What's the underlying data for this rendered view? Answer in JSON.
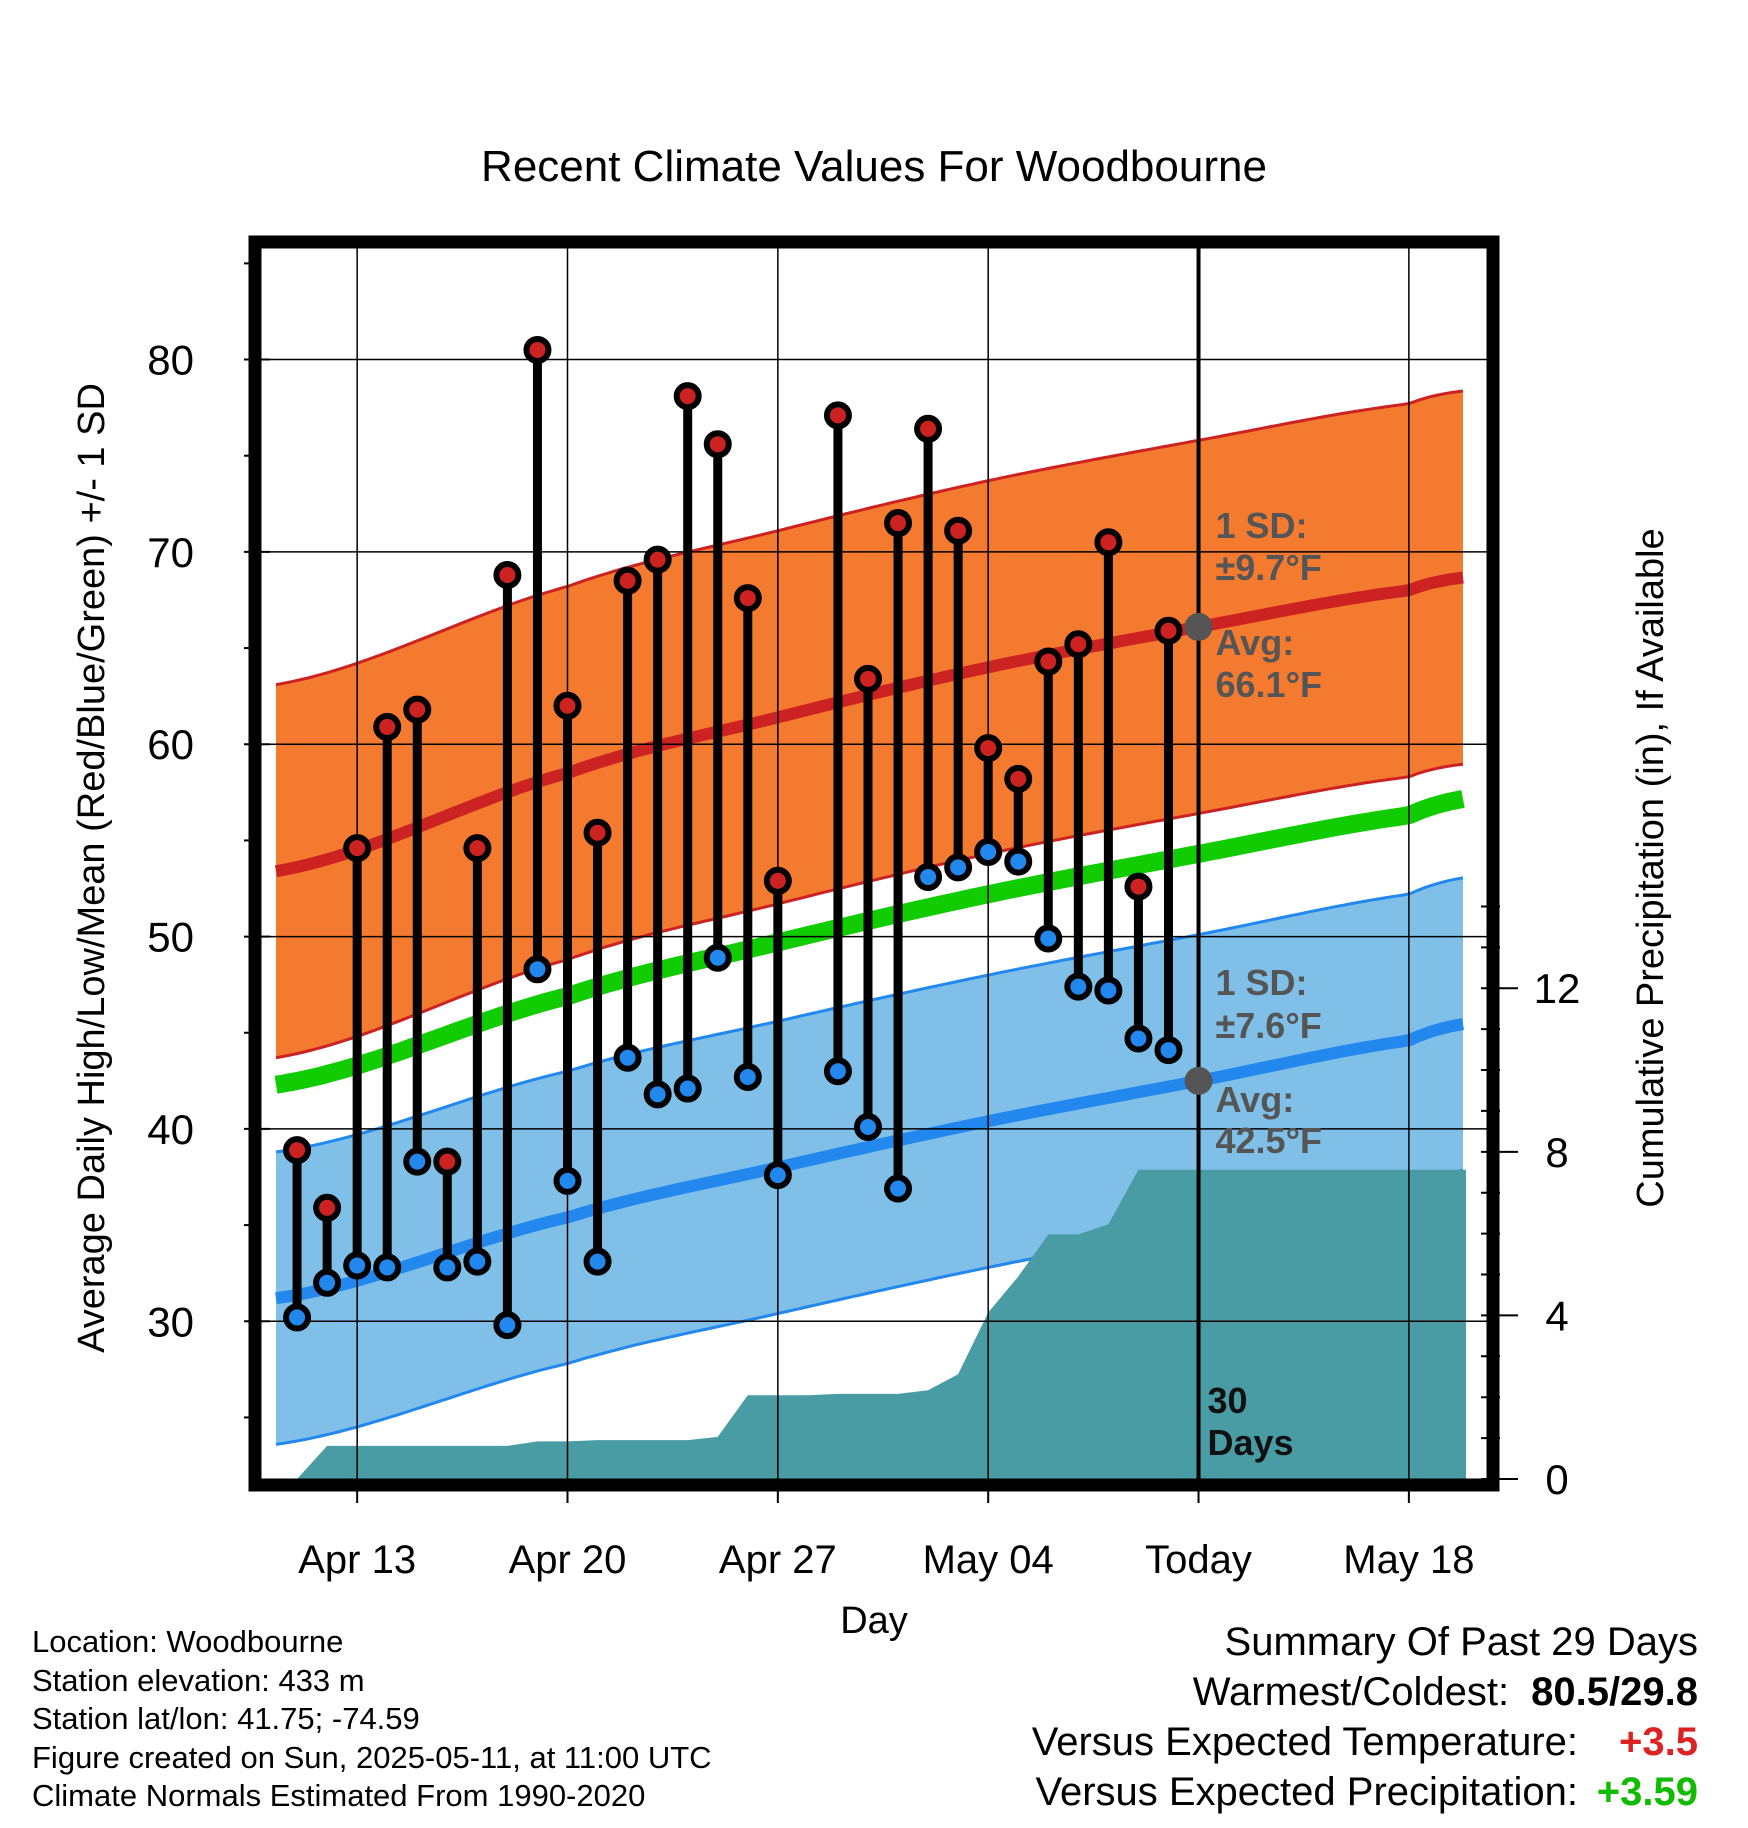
{
  "chart_data": {
    "type": "line",
    "title": "Recent Climate Values For Woodbourne",
    "xlabel": "Day",
    "ylabel": "Average Daily High/Low/Mean (Red/Blue/Green) +/- 1 SD",
    "ylabel_right": "Cumulative Precipitation (in), If Available",
    "x_tick_labels": [
      "Apr 13",
      "Apr 20",
      "Apr 27",
      "May 04",
      "Today",
      "May 18"
    ],
    "x_tick_days": [
      0,
      7,
      14,
      21,
      28,
      35
    ],
    "xlim_days": [
      -3.2,
      37.6
    ],
    "ylim": [
      21.8,
      85.8
    ],
    "y_ticks": [
      30,
      40,
      50,
      60,
      70,
      80
    ],
    "y2lim": [
      0,
      30.1
    ],
    "y2_ticks": [
      0,
      4,
      8,
      12
    ],
    "today_day": 28,
    "normals": {
      "x_days": [
        -2.7,
        7,
        14,
        21,
        28,
        35,
        37
      ],
      "high_mean": [
        53.4,
        58.5,
        61.4,
        64.0,
        66.1,
        68.0,
        68.7
      ],
      "low_mean": [
        31.2,
        35.4,
        38.0,
        40.4,
        42.5,
        44.6,
        45.5
      ],
      "avg_mean": [
        42.3,
        46.9,
        49.7,
        52.2,
        54.3,
        56.3,
        57.2
      ],
      "high_sd": 9.7,
      "low_sd": 7.6
    },
    "series": [
      {
        "name": "High",
        "color": "#cc2222",
        "x_days": [
          -2,
          -1,
          0,
          1,
          2,
          3,
          4,
          5,
          6,
          7,
          8,
          9,
          10,
          11,
          12,
          13,
          14,
          16,
          17,
          18,
          19,
          20,
          21,
          22,
          23,
          24,
          25,
          26,
          27
        ],
        "values": [
          38.9,
          35.9,
          54.6,
          60.9,
          61.8,
          38.3,
          54.6,
          68.8,
          80.5,
          62.0,
          55.4,
          68.5,
          69.6,
          78.1,
          75.6,
          67.6,
          52.9,
          77.1,
          63.4,
          71.5,
          76.4,
          71.1,
          59.8,
          58.2,
          64.3,
          65.2,
          70.5,
          52.6,
          65.9
        ]
      },
      {
        "name": "Low",
        "color": "#2288ee",
        "x_days": [
          -2,
          -1,
          0,
          1,
          2,
          3,
          4,
          5,
          6,
          7,
          8,
          9,
          10,
          11,
          12,
          13,
          14,
          16,
          17,
          18,
          19,
          20,
          21,
          22,
          23,
          24,
          25,
          26,
          27
        ],
        "values": [
          30.2,
          32.0,
          32.9,
          32.8,
          38.3,
          32.8,
          33.1,
          29.8,
          48.3,
          37.3,
          33.1,
          43.7,
          41.8,
          42.1,
          48.9,
          42.7,
          37.6,
          43.0,
          40.1,
          36.9,
          53.1,
          53.6,
          54.4,
          53.9,
          49.9,
          47.4,
          47.2,
          44.7,
          44.1
        ]
      }
    ],
    "precipitation": {
      "x_days": [
        -2,
        -1,
        0,
        1,
        2,
        3,
        4,
        5,
        6,
        7,
        8,
        9,
        10,
        11,
        12,
        13,
        14,
        15,
        16,
        17,
        18,
        19,
        20,
        21,
        22,
        23,
        24,
        25,
        26,
        27,
        28,
        36.9
      ],
      "cumulative_in": [
        0,
        0.81,
        0.81,
        0.81,
        0.81,
        0.81,
        0.81,
        0.81,
        0.92,
        0.92,
        0.95,
        0.95,
        0.95,
        0.95,
        1.03,
        2.05,
        2.05,
        2.05,
        2.08,
        2.08,
        2.08,
        2.17,
        2.56,
        4.07,
        4.95,
        5.98,
        5.98,
        6.23,
        7.56,
        7.56,
        7.56,
        7.56
      ]
    },
    "annotations": {
      "high_sd_label": "1 SD:",
      "high_sd_value": "±9.7°F",
      "high_avg_label": "Avg:",
      "high_avg_value": "66.1°F",
      "low_sd_label": "1 SD:",
      "low_sd_value": "±7.6°F",
      "low_avg_label": "Avg:",
      "low_avg_value": "42.5°F",
      "period_count": "30",
      "period_unit": "Days"
    },
    "colors": {
      "high_band": "#f47a30",
      "high_line": "#cc2222",
      "low_band": "#80c0e8",
      "low_line": "#2288ee",
      "mean_line": "#11cc00",
      "precip_fill": "#4a9ca4",
      "annotation_text": "#555555"
    },
    "grid": true
  },
  "info": {
    "location": "Location: Woodbourne",
    "elevation": "Station elevation: 433 m",
    "latlon": "Station lat/lon: 41.75; -74.59",
    "created": "Figure created on Sun, 2025-05-11, at 11:00 UTC",
    "normals": "Climate Normals Estimated From 1990-2020"
  },
  "summary": {
    "heading": "Summary Of Past 29 Days",
    "warm_cold_label": "Warmest/Coldest:",
    "warm_value": "80.5",
    "cold_value": "29.8",
    "temp_label": "Versus Expected Temperature:",
    "temp_value": "+3.5",
    "temp_color": "#dd2222",
    "precip_label": "Versus Expected Precipitation:",
    "precip_value": "+3.59",
    "precip_color": "#11bb00"
  }
}
